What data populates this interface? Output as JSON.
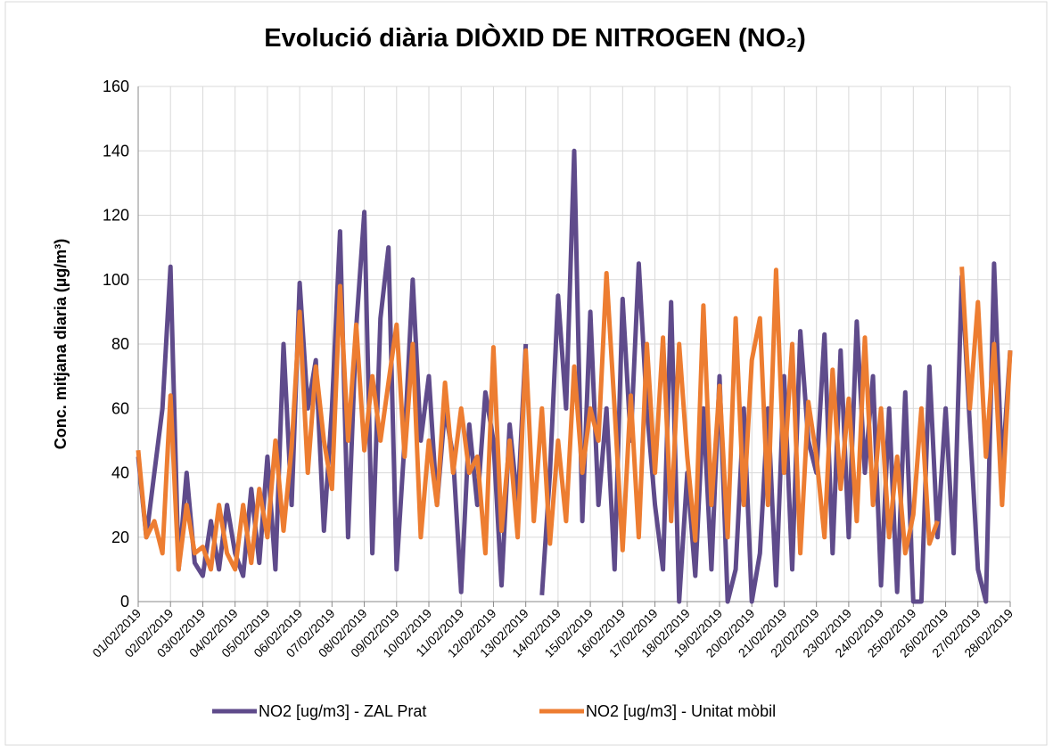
{
  "chart_data": {
    "type": "line",
    "title": "Evolució diària DIÒXID DE NITROGEN (NO₂)",
    "y_label": "Conc. mitjana diaria (µg/m³)",
    "categories": [
      "01/02/2019",
      null,
      null,
      null,
      "02/02/2019",
      null,
      null,
      null,
      "03/02/2019",
      null,
      null,
      null,
      "04/02/2019",
      null,
      null,
      null,
      "05/02/2019",
      null,
      null,
      null,
      "06/02/2019",
      null,
      null,
      null,
      "07/02/2019",
      null,
      null,
      null,
      "08/02/2019",
      null,
      null,
      null,
      "09/02/2019",
      null,
      null,
      null,
      "10/02/2019",
      null,
      null,
      null,
      "11/02/2019",
      null,
      null,
      null,
      "12/02/2019",
      null,
      null,
      null,
      "13/02/2019",
      null,
      null,
      null,
      "14/02/2019",
      null,
      null,
      null,
      "15/02/2019",
      null,
      null,
      null,
      "16/02/2019",
      null,
      null,
      null,
      "17/02/2019",
      null,
      null,
      null,
      "18/02/2019",
      null,
      null,
      null,
      "19/02/2019",
      null,
      null,
      null,
      "20/02/2019",
      null,
      null,
      null,
      "21/02/2019",
      null,
      null,
      null,
      "22/02/2019",
      null,
      null,
      null,
      "23/02/2019",
      null,
      null,
      null,
      "24/02/2019",
      null,
      null,
      null,
      "25/02/2019",
      null,
      null,
      null,
      "26/02/2019",
      null,
      null,
      null,
      "27/02/2019",
      null,
      null,
      null,
      "28/02/2019"
    ],
    "series": [
      {
        "name": "NO2 [ug/m3] - ZAL Prat",
        "color": "#5f4b8b",
        "values": [
          45,
          20,
          40,
          60,
          104,
          10,
          40,
          12,
          8,
          25,
          10,
          30,
          15,
          8,
          35,
          12,
          45,
          10,
          80,
          30,
          99,
          60,
          75,
          22,
          60,
          115,
          20,
          85,
          121,
          15,
          88,
          110,
          10,
          50,
          100,
          50,
          70,
          30,
          60,
          45,
          3,
          55,
          30,
          65,
          50,
          5,
          55,
          30,
          80,
          null,
          2,
          40,
          95,
          60,
          140,
          25,
          90,
          30,
          60,
          10,
          94,
          50,
          105,
          60,
          30,
          10,
          93,
          0,
          40,
          8,
          60,
          10,
          70,
          0,
          10,
          60,
          0,
          15,
          60,
          5,
          70,
          10,
          84,
          50,
          40,
          83,
          15,
          78,
          20,
          87,
          40,
          70,
          5,
          60,
          3,
          65,
          0,
          0,
          73,
          20,
          60,
          15,
          101,
          55,
          10,
          0,
          105,
          40,
          78
        ]
      },
      {
        "name": "NO2 [ug/m3] - Unitat mòbil",
        "color": "#ed7d31",
        "values": [
          47,
          20,
          25,
          15,
          64,
          10,
          30,
          15,
          17,
          10,
          30,
          15,
          10,
          30,
          12,
          35,
          20,
          50,
          22,
          48,
          90,
          40,
          73,
          50,
          35,
          98,
          50,
          86,
          47,
          70,
          50,
          68,
          86,
          45,
          80,
          20,
          50,
          30,
          68,
          40,
          60,
          40,
          45,
          15,
          79,
          22,
          50,
          20,
          78,
          25,
          60,
          18,
          50,
          25,
          73,
          40,
          60,
          50,
          102,
          60,
          16,
          64,
          20,
          80,
          40,
          82,
          25,
          80,
          45,
          19,
          92,
          30,
          67,
          20,
          88,
          30,
          75,
          88,
          30,
          103,
          40,
          80,
          15,
          62,
          45,
          20,
          72,
          35,
          63,
          25,
          82,
          30,
          60,
          20,
          45,
          15,
          27,
          60,
          18,
          25,
          null,
          null,
          104,
          60,
          93,
          45,
          80,
          30,
          78
        ]
      }
    ],
    "ylim": [
      0,
      160
    ],
    "yticks": [
      0,
      20,
      40,
      60,
      80,
      100,
      120,
      140,
      160
    ],
    "grid": true,
    "legend": "bottom"
  }
}
